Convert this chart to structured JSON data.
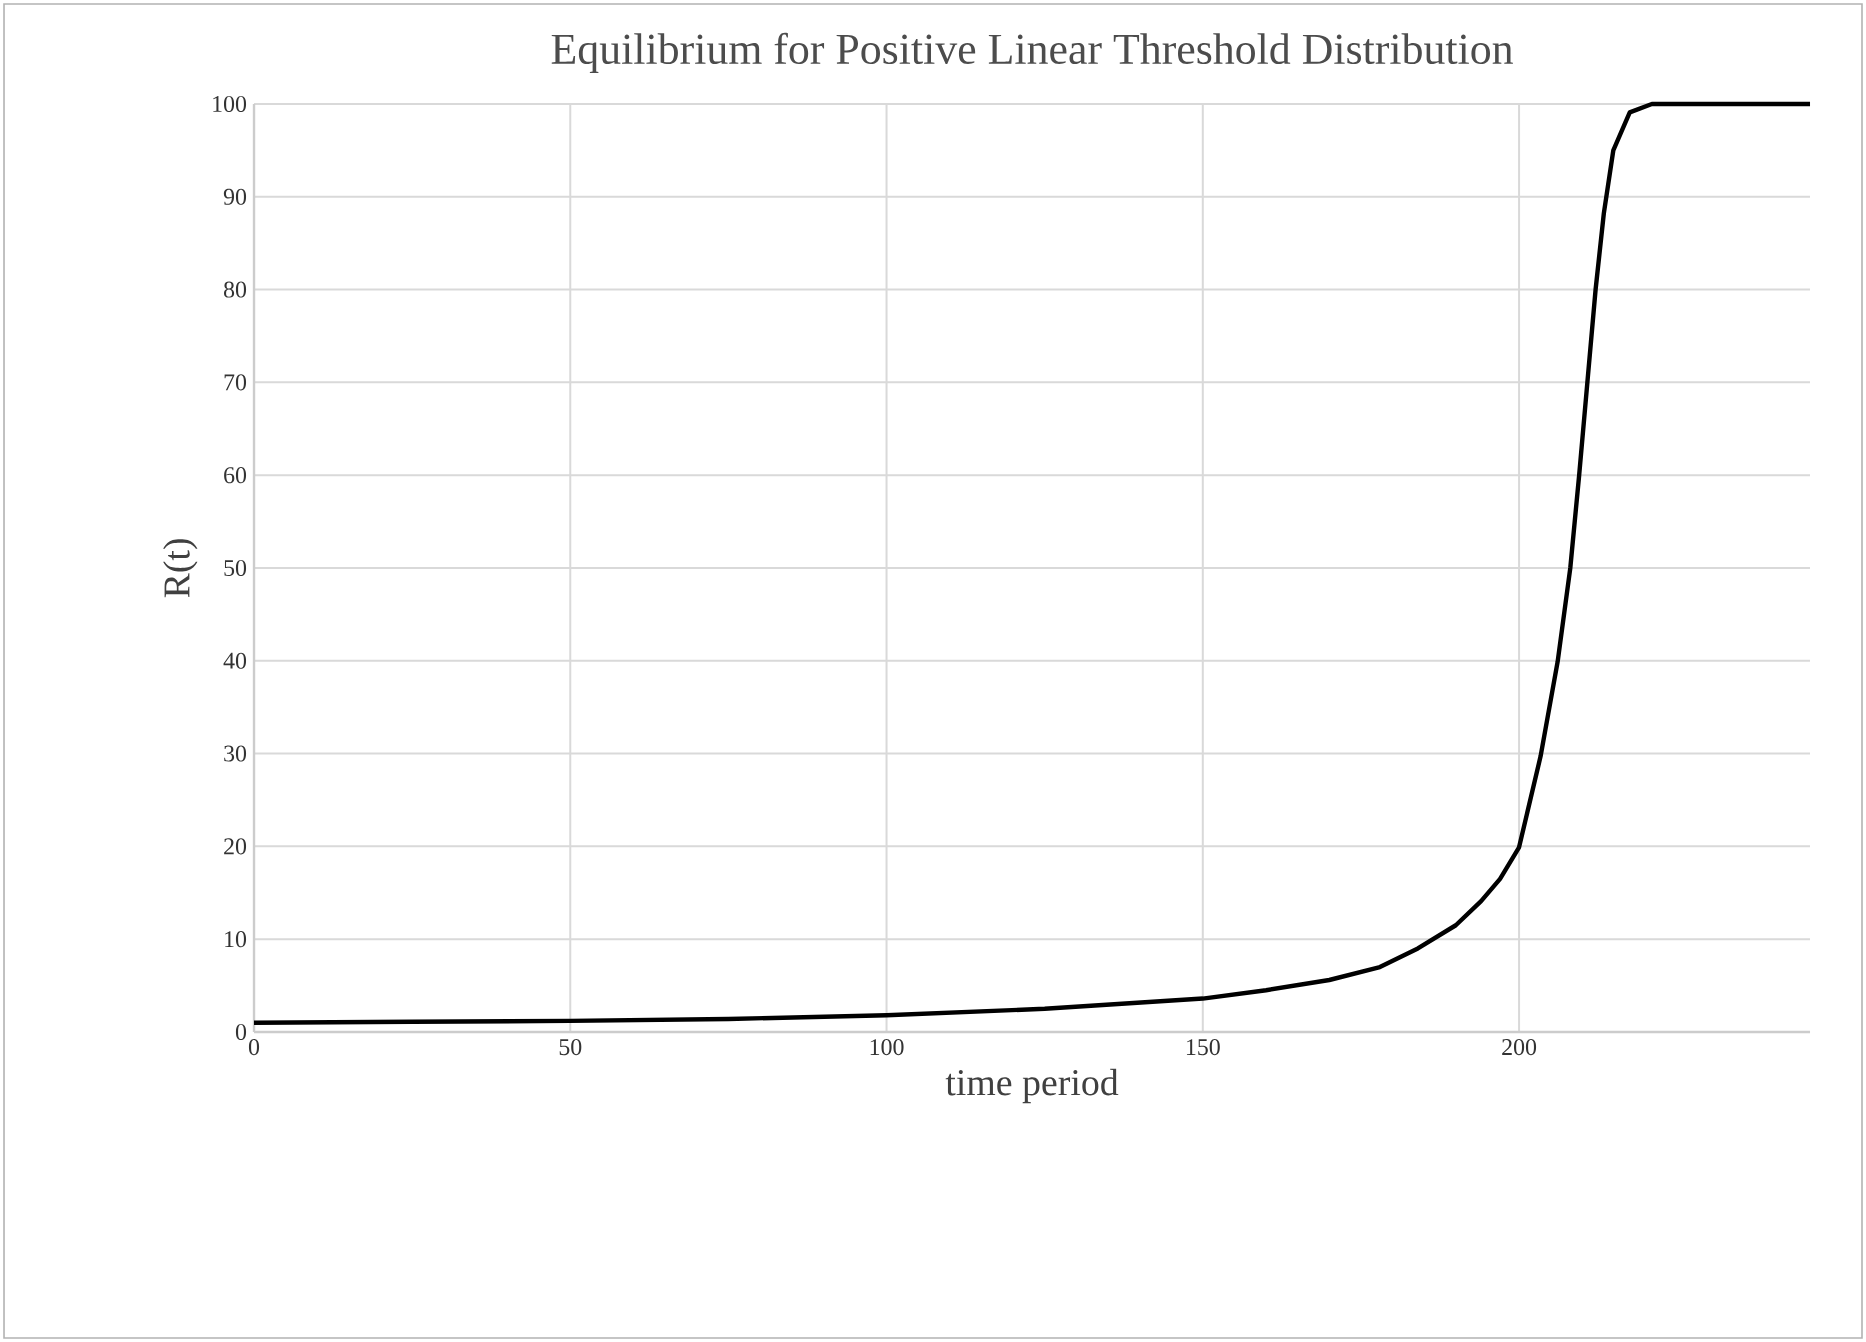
{
  "chart_data": {
    "type": "line",
    "title": "Equilibrium for Positive Linear Threshold Distribution",
    "xlabel": "time period",
    "ylabel": "R(t)",
    "x": [
      0,
      25,
      50,
      75,
      100,
      125,
      150,
      160,
      170,
      178,
      184,
      190,
      194,
      197,
      200,
      203.4,
      206.1,
      208.1,
      209.5,
      210.8,
      212.1,
      213.4,
      214.9,
      217.5,
      221,
      246
    ],
    "series": [
      {
        "color": "#000000",
        "values": [
          1,
          1.1,
          1.2,
          1.4,
          1.8,
          2.5,
          3.6,
          4.5,
          5.6,
          7,
          9,
          11.5,
          14.1,
          16.5,
          19.9,
          29.7,
          39.9,
          50,
          60,
          70,
          80,
          88.2,
          95,
          99.1,
          100,
          100
        ]
      }
    ],
    "xlim": [
      0,
      246
    ],
    "ylim": [
      0,
      100
    ],
    "xticks": [
      0,
      50,
      100,
      150,
      200
    ],
    "yticks": [
      0,
      10,
      20,
      30,
      40,
      50,
      60,
      70,
      80,
      90,
      100
    ],
    "grid": true,
    "marker": "none",
    "line_style": "solid"
  }
}
